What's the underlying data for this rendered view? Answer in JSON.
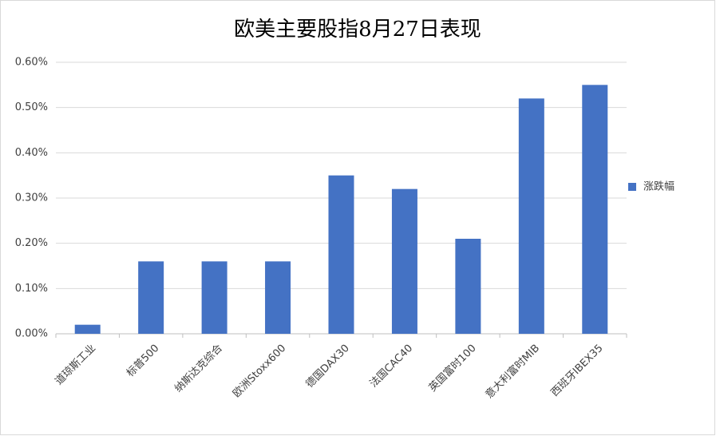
{
  "chart_data": {
    "type": "bar",
    "title": "欧美主要股指8月27日表现",
    "categories": [
      "道琼斯工业",
      "标普500",
      "纳斯达克综合",
      "欧洲Stoxx600",
      "德国DAX30",
      "法国CAC40",
      "英国富时100",
      "意大利富时MIB",
      "西班牙IBEX35"
    ],
    "series": [
      {
        "name": "涨跌幅",
        "color": "#4472c4",
        "values": [
          0.02,
          0.16,
          0.16,
          0.16,
          0.35,
          0.32,
          0.21,
          0.52,
          0.55
        ]
      }
    ],
    "ylim": [
      0,
      0.6
    ],
    "yticks": [
      {
        "value": 0,
        "label": "0.00%"
      },
      {
        "value": 0.1,
        "label": "0.10%"
      },
      {
        "value": 0.2,
        "label": "0.20%"
      },
      {
        "value": 0.3,
        "label": "0.30%"
      },
      {
        "value": 0.4,
        "label": "0.40%"
      },
      {
        "value": 0.5,
        "label": "0.50%"
      },
      {
        "value": 0.6,
        "label": "0.60%"
      }
    ],
    "grid": true,
    "legend": "right"
  }
}
